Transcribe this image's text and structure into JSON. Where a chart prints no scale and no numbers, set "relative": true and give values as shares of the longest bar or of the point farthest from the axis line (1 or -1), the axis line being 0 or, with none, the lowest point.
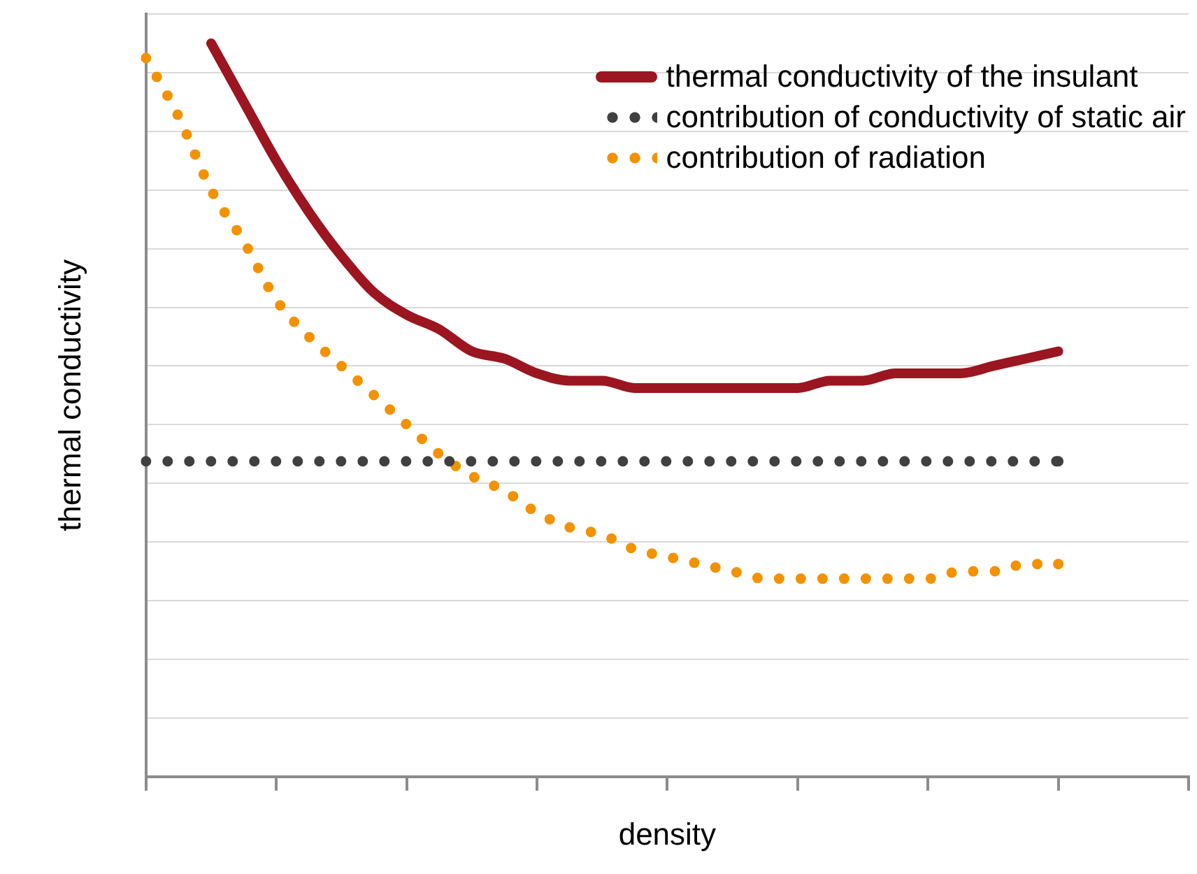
{
  "chart_data": {
    "type": "line",
    "xlabel": "density",
    "ylabel": "thermal conductivity",
    "relative": true,
    "grid": "y",
    "legend": "top right",
    "marker": "none",
    "categories": [
      null,
      null,
      null,
      null,
      null,
      null,
      null,
      null,
      null,
      null,
      null,
      null,
      null,
      null,
      null,
      null,
      null,
      null,
      null,
      null,
      null,
      null,
      null,
      null,
      null,
      null,
      null,
      null,
      null,
      null,
      null,
      null,
      null
    ],
    "series": [
      {
        "name": "thermal conductivity of the insulant",
        "color": "#9b1620",
        "line_style": "solid",
        "values": [
          null,
          null,
          1.0,
          0.92,
          0.84,
          0.77,
          0.71,
          0.66,
          0.63,
          0.61,
          0.58,
          0.57,
          0.55,
          0.54,
          0.54,
          0.53,
          0.53,
          0.53,
          0.53,
          0.53,
          0.53,
          0.54,
          0.54,
          0.55,
          0.55,
          0.55,
          0.56,
          0.57,
          0.58,
          null,
          null,
          null,
          null
        ]
      },
      {
        "name": "contribution of conductivity of static air",
        "color": "#404040",
        "line_style": "dotted",
        "values": [
          0.43,
          0.43,
          0.43,
          0.43,
          0.43,
          0.43,
          0.43,
          0.43,
          0.43,
          0.43,
          0.43,
          0.43,
          0.43,
          0.43,
          0.43,
          0.43,
          0.43,
          0.43,
          0.43,
          0.43,
          0.43,
          0.43,
          0.43,
          0.43,
          0.43,
          0.43,
          0.43,
          0.43,
          0.43,
          null,
          null,
          null,
          null
        ]
      },
      {
        "name": "contribution of radiation",
        "color": "#f39200",
        "line_style": "dotted",
        "values": [
          0.98,
          0.9,
          0.8,
          0.73,
          0.65,
          0.6,
          0.56,
          0.52,
          0.48,
          0.44,
          0.41,
          0.39,
          0.36,
          0.34,
          0.33,
          0.31,
          0.3,
          0.29,
          0.28,
          0.27,
          0.27,
          0.27,
          0.27,
          0.27,
          0.27,
          0.28,
          0.28,
          0.29,
          0.29,
          null,
          null,
          null,
          null
        ]
      }
    ]
  }
}
